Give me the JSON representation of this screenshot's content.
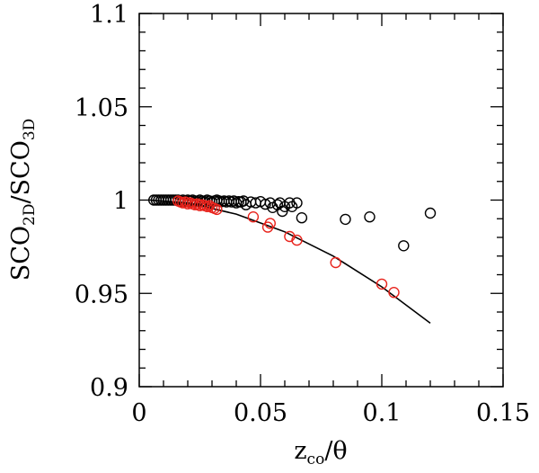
{
  "chart_data": {
    "type": "scatter",
    "xlabel": {
      "main": "z",
      "sub": "co",
      "tail": "/θ"
    },
    "ylabel": {
      "a": "SCO",
      "a_sub": "2D",
      "b": "/SCO",
      "b_sub": "3D"
    },
    "xlim": [
      0,
      0.15
    ],
    "ylim": [
      0.9,
      1.1
    ],
    "x_ticks": [
      {
        "value": 0,
        "label": "0"
      },
      {
        "value": 0.05,
        "label": "0.05"
      },
      {
        "value": 0.1,
        "label": "0.1"
      },
      {
        "value": 0.15,
        "label": "0.15"
      }
    ],
    "y_ticks": [
      {
        "value": 0.9,
        "label": "0.9"
      },
      {
        "value": 0.95,
        "label": "0.95"
      },
      {
        "value": 1.0,
        "label": "1"
      },
      {
        "value": 1.05,
        "label": "1.05"
      },
      {
        "value": 1.1,
        "label": "1.1"
      }
    ],
    "grid": false,
    "series": [
      {
        "color": "#000000",
        "marker": "open-circle",
        "points": [
          [
            0.006,
            1.0
          ],
          [
            0.007,
            1.0
          ],
          [
            0.008,
            1.0
          ],
          [
            0.009,
            1.0
          ],
          [
            0.01,
            1.0
          ],
          [
            0.011,
            1.0
          ],
          [
            0.012,
            1.0
          ],
          [
            0.013,
            1.0
          ],
          [
            0.014,
            1.0
          ],
          [
            0.015,
            1.0
          ],
          [
            0.016,
            1.0
          ],
          [
            0.017,
            0.9995
          ],
          [
            0.018,
            1.0
          ],
          [
            0.019,
            0.9995
          ],
          [
            0.02,
            1.0
          ],
          [
            0.021,
            0.9995
          ],
          [
            0.022,
            1.0
          ],
          [
            0.023,
            0.9995
          ],
          [
            0.024,
            0.9992
          ],
          [
            0.025,
            1.0
          ],
          [
            0.026,
            0.9995
          ],
          [
            0.027,
            0.9992
          ],
          [
            0.028,
            1.0
          ],
          [
            0.029,
            0.9995
          ],
          [
            0.03,
            0.999
          ],
          [
            0.031,
            0.9995
          ],
          [
            0.032,
            1.0
          ],
          [
            0.033,
            0.9995
          ],
          [
            0.034,
            0.9992
          ],
          [
            0.035,
            0.9995
          ],
          [
            0.036,
            0.999
          ],
          [
            0.037,
            0.9995
          ],
          [
            0.038,
            0.999
          ],
          [
            0.039,
            0.9995
          ],
          [
            0.04,
            0.9985
          ],
          [
            0.041,
            0.9992
          ],
          [
            0.042,
            0.999
          ],
          [
            0.043,
            0.9995
          ],
          [
            0.044,
            0.9975
          ],
          [
            0.046,
            0.999
          ],
          [
            0.048,
            0.9985
          ],
          [
            0.05,
            0.9992
          ],
          [
            0.052,
            0.9978
          ],
          [
            0.054,
            0.9985
          ],
          [
            0.055,
            0.996
          ],
          [
            0.057,
            0.9975
          ],
          [
            0.058,
            0.9985
          ],
          [
            0.059,
            0.994
          ],
          [
            0.06,
            0.9965
          ],
          [
            0.062,
            0.9985
          ],
          [
            0.063,
            0.9965
          ],
          [
            0.065,
            0.9985
          ],
          [
            0.067,
            0.9905
          ],
          [
            0.085,
            0.9897
          ],
          [
            0.095,
            0.991
          ],
          [
            0.109,
            0.9755
          ],
          [
            0.12,
            0.993
          ]
        ]
      },
      {
        "color": "#e8231c",
        "marker": "open-circle",
        "points": [
          [
            0.016,
            0.9995
          ],
          [
            0.017,
            0.999
          ],
          [
            0.018,
            0.9985
          ],
          [
            0.019,
            0.999
          ],
          [
            0.02,
            0.998
          ],
          [
            0.021,
            0.9985
          ],
          [
            0.022,
            0.998
          ],
          [
            0.023,
            0.9975
          ],
          [
            0.024,
            0.998
          ],
          [
            0.025,
            0.997
          ],
          [
            0.026,
            0.9975
          ],
          [
            0.027,
            0.997
          ],
          [
            0.028,
            0.9965
          ],
          [
            0.029,
            0.997
          ],
          [
            0.03,
            0.996
          ],
          [
            0.031,
            0.9955
          ],
          [
            0.032,
            0.995
          ],
          [
            0.047,
            0.991
          ],
          [
            0.053,
            0.9855
          ],
          [
            0.054,
            0.9875
          ],
          [
            0.062,
            0.9805
          ],
          [
            0.065,
            0.9785
          ],
          [
            0.081,
            0.9665
          ],
          [
            0.1,
            0.955
          ],
          [
            0.105,
            0.9505
          ]
        ]
      }
    ],
    "fit_line": {
      "color": "#000000",
      "points": [
        [
          0.005,
          0.9999
        ],
        [
          0.02,
          0.9985
        ],
        [
          0.04,
          0.9925
        ],
        [
          0.06,
          0.983
        ],
        [
          0.08,
          0.97
        ],
        [
          0.1,
          0.9535
        ],
        [
          0.12,
          0.934
        ]
      ]
    }
  }
}
